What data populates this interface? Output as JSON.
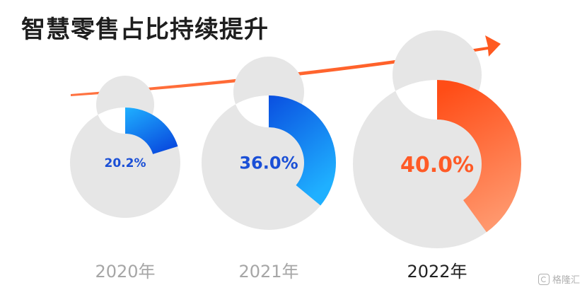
{
  "chart_data": {
    "type": "pie",
    "variant": "donut",
    "title": "智慧零售占比持续提升",
    "categories": [
      "2020年",
      "2021年",
      "2022年"
    ],
    "values": [
      20.2,
      36.0,
      40.0
    ],
    "value_labels": [
      "20.2%",
      "36.0%",
      "40.0%"
    ],
    "unit": "%",
    "highlight_index": 2,
    "colors": {
      "track": "#e6e6e6",
      "blue_light": "#1fb0ff",
      "blue_dark": "#0a4fe0",
      "orange_light": "#ff9a70",
      "orange_dark": "#ff4d17",
      "label_blue": "#1a4fd6",
      "label_orange": "#ff5a26",
      "year_muted": "#a6a6a6",
      "year_active": "#222222",
      "arrow": "#ff5a20"
    }
  },
  "watermark": {
    "text": "格隆汇",
    "icon": "gelonghui-logo-icon"
  }
}
